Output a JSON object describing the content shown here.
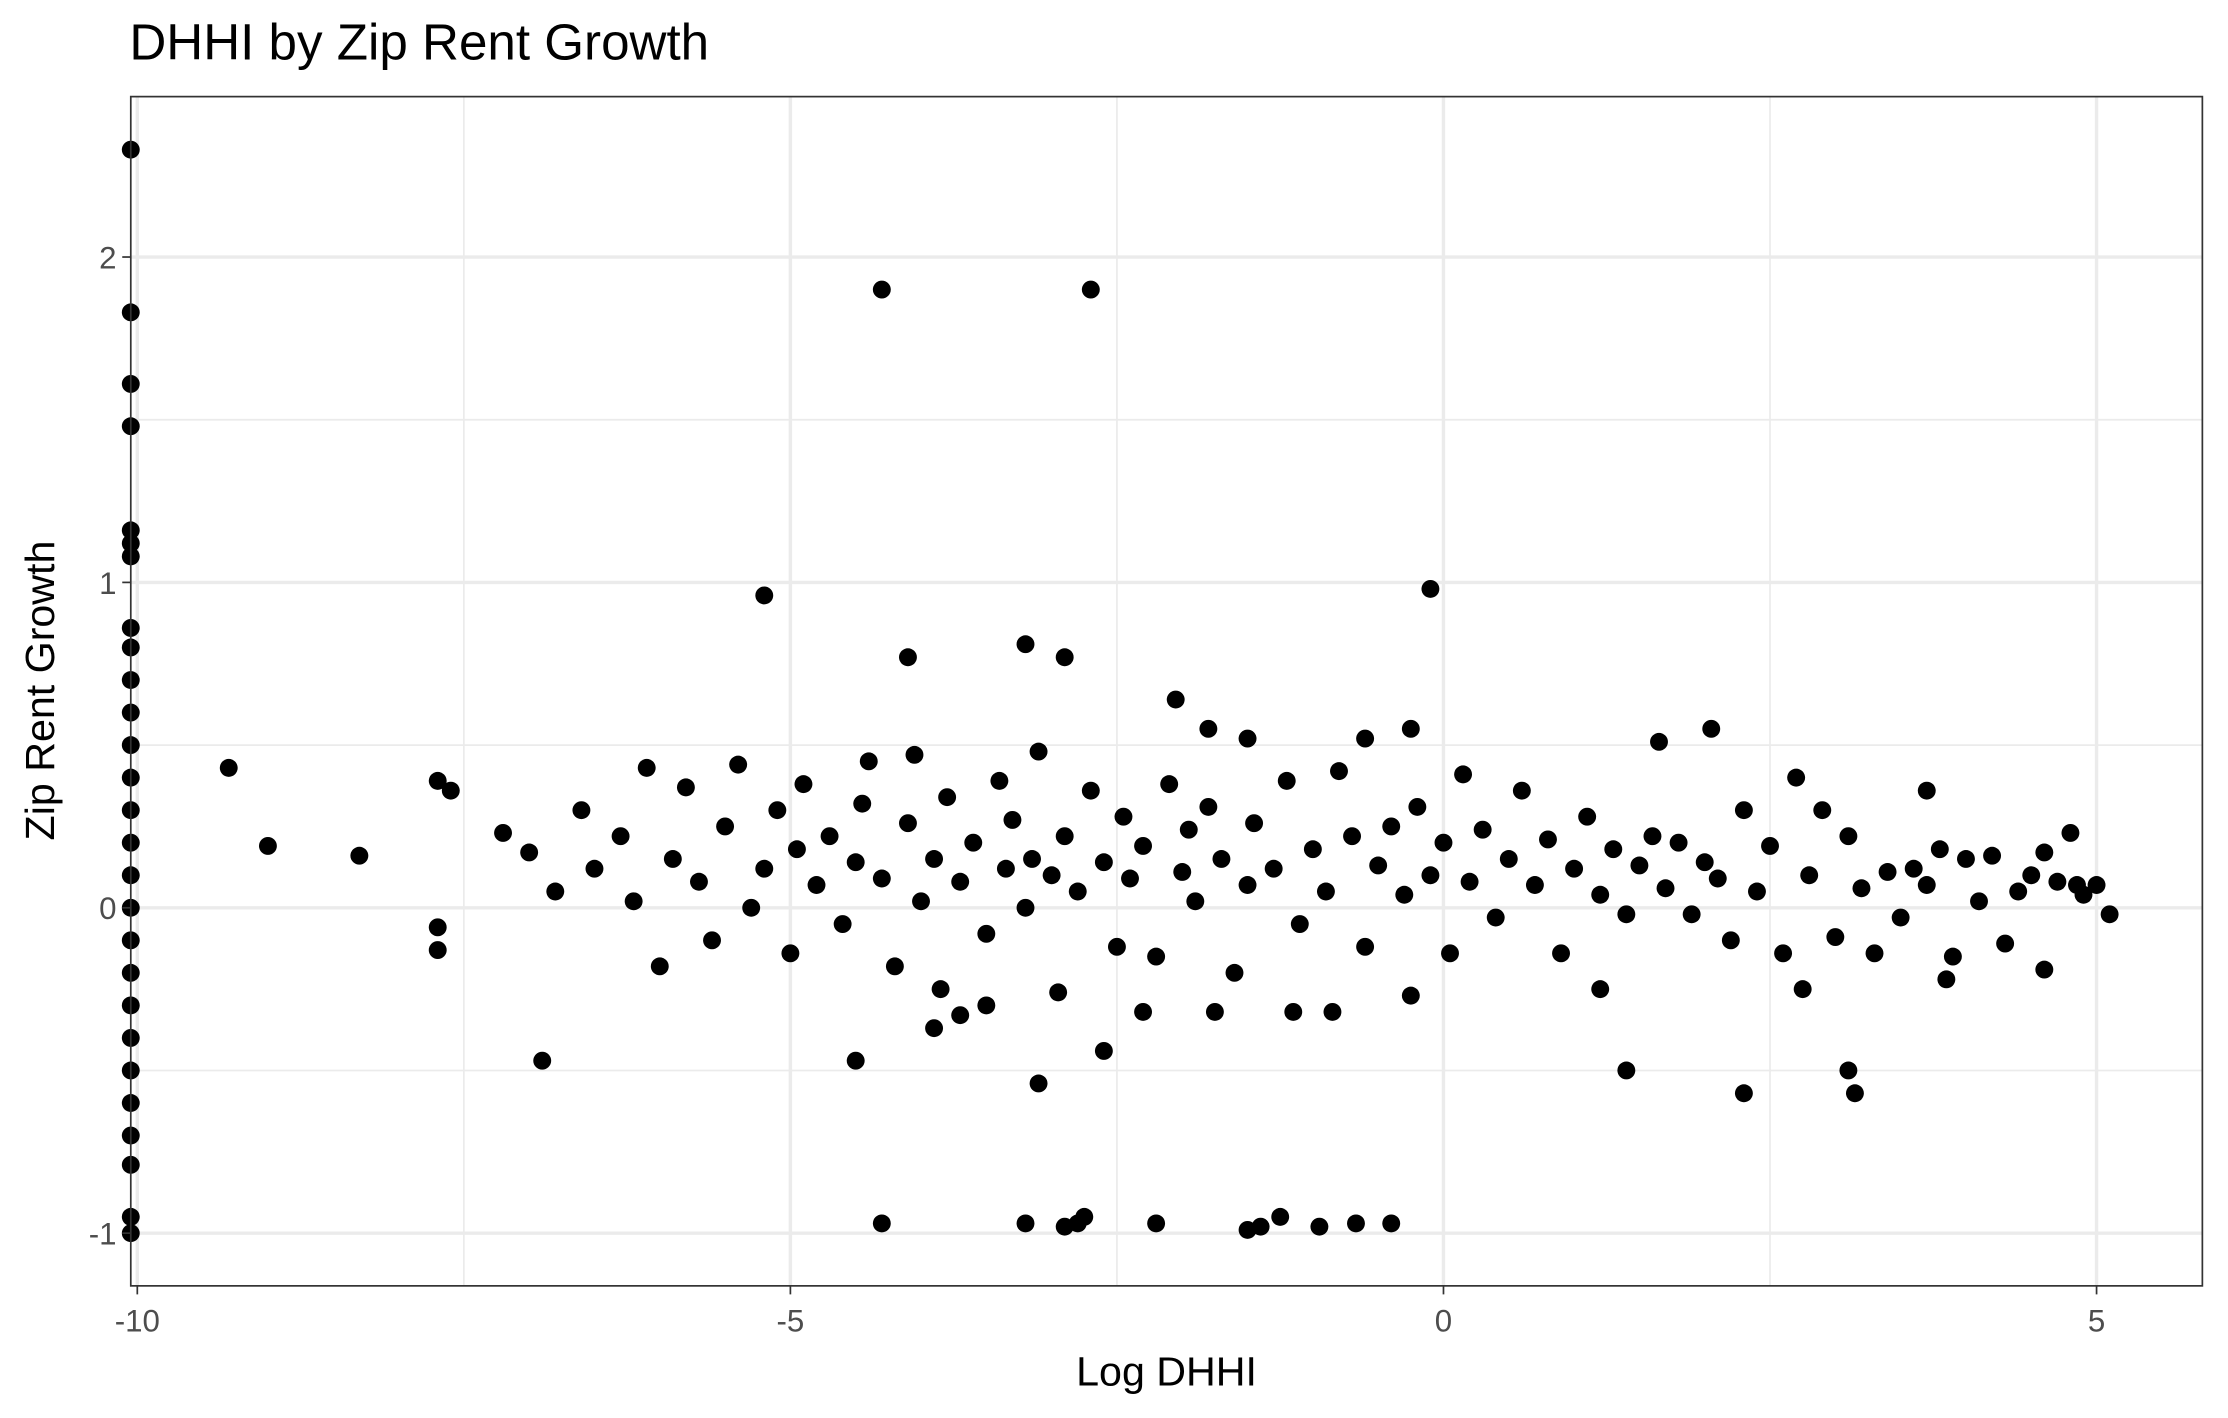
{
  "chart_data": {
    "type": "scatter",
    "title": "DHHI by Zip Rent Growth",
    "x_label": "Log DHHI",
    "y_label": "Zip Rent Growth",
    "color": "#000000",
    "grid": true,
    "xlim": [
      -10.05,
      5.81
    ],
    "ylim": [
      -1.162,
      2.493
    ],
    "xticks": [
      -10,
      -5,
      0,
      5
    ],
    "yticks": [
      -1,
      0,
      1,
      2
    ],
    "xminorticks": [
      -7.5,
      -2.5,
      2.5
    ],
    "yminorticks": [
      -0.5,
      0.5,
      1.5
    ],
    "x": [
      -10.05,
      -10.05,
      -10.05,
      -10.05,
      -10.05,
      -10.05,
      -10.05,
      -10.05,
      -10.05,
      -10.05,
      -10.05,
      -10.05,
      -10.05,
      -10.05,
      -10.05,
      -10.05,
      -10.05,
      -10.05,
      -10.05,
      -10.05,
      -10.05,
      -10.05,
      -10.05,
      -10.05,
      -10.05,
      -10.05,
      -10.05,
      -4.3,
      -2.7,
      -5.2,
      -0.1,
      -4.1,
      -3.2,
      -2.9,
      -2.05,
      -9.3,
      -9.0,
      -8.3,
      -7.7,
      -7.7,
      -7.7,
      -7.6,
      -6.9,
      -4.5,
      -3.1,
      -2.6,
      -4.3,
      -3.2,
      -2.9,
      -2.8,
      -2.75,
      -2.2,
      -1.5,
      -1.4,
      -1.25,
      -0.95,
      -0.67,
      -0.4,
      1.4,
      2.3,
      3.1,
      3.15,
      1.65,
      2.05,
      -0.25,
      -0.6,
      -1.5,
      -1.8,
      3.7,
      -3.9,
      -3.7,
      -3.5,
      -2.3,
      -1.75,
      -1.15,
      -0.85,
      -0.25,
      2.75,
      1.2,
      3.85,
      4.6,
      -7.2,
      -7.0,
      -6.8,
      -6.6,
      -6.5,
      -6.3,
      -6.2,
      -6.1,
      -6.0,
      -5.9,
      -5.8,
      -5.7,
      -5.6,
      -5.5,
      -5.4,
      -5.3,
      -5.2,
      -5.1,
      -5.0,
      -4.95,
      -4.9,
      -4.8,
      -4.7,
      -4.6,
      -4.5,
      -4.45,
      -4.4,
      -4.3,
      -4.2,
      -4.1,
      -4.05,
      -4.0,
      -3.9,
      -3.85,
      -3.8,
      -3.7,
      -3.6,
      -3.5,
      -3.4,
      -3.35,
      -3.3,
      -3.2,
      -3.15,
      -3.1,
      -3.0,
      -2.95,
      -2.9,
      -2.8,
      -2.7,
      -2.6,
      -2.5,
      -2.45,
      -2.4,
      -2.3,
      -2.2,
      -2.1,
      -2.0,
      -1.95,
      -1.9,
      -1.8,
      -1.7,
      -1.6,
      -1.5,
      -1.45,
      -1.3,
      -1.2,
      -1.1,
      -1.0,
      -0.9,
      -0.8,
      -0.7,
      -0.6,
      -0.5,
      -0.4,
      -0.3,
      -0.2,
      -0.1,
      0.0,
      0.05,
      0.15,
      0.2,
      0.3,
      0.4,
      0.5,
      0.6,
      0.7,
      0.8,
      0.9,
      1.0,
      1.1,
      1.2,
      1.3,
      1.4,
      1.5,
      1.6,
      1.7,
      1.8,
      1.9,
      2.0,
      2.1,
      2.2,
      2.3,
      2.4,
      2.5,
      2.6,
      2.7,
      2.8,
      2.9,
      3.0,
      3.1,
      3.2,
      3.3,
      3.4,
      3.5,
      3.6,
      3.7,
      3.8,
      3.9,
      4.0,
      4.1,
      4.2,
      4.3,
      4.4,
      4.5,
      4.6,
      4.7,
      4.8,
      4.85,
      4.9,
      5.0,
      5.1
    ],
    "values": [
      2.33,
      1.83,
      1.61,
      1.48,
      1.16,
      1.12,
      1.08,
      0.86,
      0.8,
      0.7,
      0.6,
      0.5,
      0.4,
      0.3,
      0.2,
      0.1,
      0,
      -0.1,
      -0.2,
      -0.3,
      -0.4,
      -0.5,
      -0.6,
      -0.7,
      -0.79,
      -0.95,
      -1.0,
      1.9,
      1.9,
      0.96,
      0.98,
      0.77,
      0.81,
      0.77,
      0.64,
      0.43,
      0.19,
      0.16,
      -0.06,
      -0.13,
      0.39,
      0.36,
      -0.47,
      -0.47,
      -0.54,
      -0.44,
      -0.97,
      -0.97,
      -0.98,
      -0.97,
      -0.95,
      -0.97,
      -0.99,
      -0.98,
      -0.95,
      -0.98,
      -0.97,
      -0.97,
      -0.5,
      -0.57,
      -0.5,
      -0.57,
      0.51,
      0.55,
      0.55,
      0.52,
      0.52,
      0.55,
      0.36,
      -0.37,
      -0.33,
      -0.3,
      -0.32,
      -0.32,
      -0.32,
      -0.32,
      -0.27,
      -0.25,
      -0.25,
      -0.22,
      -0.19,
      0.23,
      0.17,
      0.05,
      0.3,
      0.12,
      0.22,
      0.02,
      0.43,
      -0.18,
      0.15,
      0.37,
      0.08,
      -0.1,
      0.25,
      0.44,
      0.0,
      0.12,
      0.3,
      -0.14,
      0.18,
      0.38,
      0.07,
      0.22,
      -0.05,
      0.14,
      0.32,
      0.45,
      0.09,
      -0.18,
      0.26,
      0.47,
      0.02,
      0.15,
      -0.25,
      0.34,
      0.08,
      0.2,
      -0.08,
      0.39,
      0.12,
      0.27,
      0.0,
      0.15,
      0.48,
      0.1,
      -0.26,
      0.22,
      0.05,
      0.36,
      0.14,
      -0.12,
      0.28,
      0.09,
      0.19,
      -0.15,
      0.38,
      0.11,
      0.24,
      0.02,
      0.31,
      0.15,
      -0.2,
      0.07,
      0.26,
      0.12,
      0.39,
      -0.05,
      0.18,
      0.05,
      0.42,
      0.22,
      -0.12,
      0.13,
      0.25,
      0.04,
      0.31,
      0.1,
      0.2,
      -0.14,
      0.41,
      0.08,
      0.24,
      -0.03,
      0.15,
      0.36,
      0.07,
      0.21,
      -0.14,
      0.12,
      0.28,
      0.04,
      0.18,
      -0.02,
      0.13,
      0.22,
      0.06,
      0.2,
      -0.02,
      0.14,
      0.09,
      -0.1,
      0.3,
      0.05,
      0.19,
      -0.14,
      0.4,
      0.1,
      0.3,
      -0.09,
      0.22,
      0.06,
      -0.14,
      0.11,
      -0.03,
      0.12,
      0.07,
      0.18,
      -0.15,
      0.15,
      0.02,
      0.16,
      -0.11,
      0.05,
      0.1,
      0.17,
      0.08,
      0.23,
      0.07,
      0.04,
      0.07,
      -0.02
    ]
  }
}
